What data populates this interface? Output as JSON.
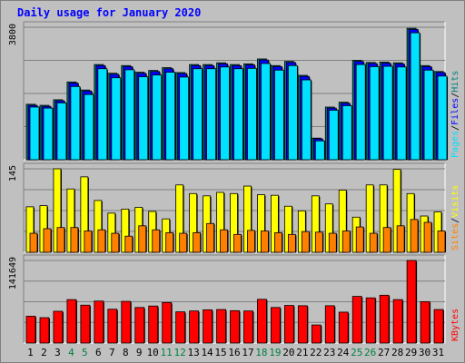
{
  "title": "Daily usage for January 2020",
  "colors": {
    "background": "#c0c0c0",
    "title": "#0000ff",
    "hits": "#008080",
    "files": "#0000ff",
    "pages": "#00e0ff",
    "visits": "#ffff00",
    "sites": "#ff8000",
    "kbytes": "#ff0000",
    "weekend_label": "#008040",
    "weekday_label": "#000000"
  },
  "chart_data": [
    {
      "type": "bar",
      "name": "hits-files-pages",
      "ymax_label": "3800",
      "ylim": [
        0,
        3800
      ],
      "legend": [
        "Pages",
        "/",
        "Files",
        "/",
        "Hits"
      ],
      "categories": [
        "1",
        "2",
        "3",
        "4",
        "5",
        "6",
        "7",
        "8",
        "9",
        "10",
        "11",
        "12",
        "13",
        "14",
        "15",
        "16",
        "17",
        "18",
        "19",
        "20",
        "21",
        "22",
        "23",
        "24",
        "25",
        "26",
        "27",
        "28",
        "29",
        "30",
        "31"
      ],
      "series": [
        {
          "name": "Hits",
          "values": [
            1590,
            1560,
            1720,
            2230,
            2000,
            2730,
            2480,
            2700,
            2510,
            2560,
            2640,
            2500,
            2730,
            2730,
            2780,
            2730,
            2750,
            2890,
            2700,
            2820,
            2420,
            620,
            1510,
            1650,
            2850,
            2790,
            2800,
            2780,
            3770,
            2700,
            2530
          ]
        },
        {
          "name": "Files",
          "values": [
            1560,
            1530,
            1690,
            2200,
            1970,
            2700,
            2450,
            2670,
            2480,
            2530,
            2610,
            2470,
            2700,
            2700,
            2750,
            2700,
            2720,
            2860,
            2670,
            2790,
            2390,
            600,
            1480,
            1620,
            2820,
            2760,
            2770,
            2750,
            3740,
            2670,
            2500
          ]
        },
        {
          "name": "Pages",
          "values": [
            1510,
            1480,
            1630,
            2100,
            1870,
            2610,
            2350,
            2580,
            2380,
            2430,
            2510,
            2370,
            2610,
            2610,
            2660,
            2610,
            2620,
            2760,
            2570,
            2700,
            2290,
            540,
            1420,
            1550,
            2730,
            2670,
            2680,
            2660,
            3640,
            2570,
            2400
          ]
        }
      ]
    },
    {
      "type": "bar",
      "name": "visits-sites",
      "ymax_label": "145",
      "ylim": [
        0,
        145
      ],
      "legend": [
        "Sites",
        "/",
        "Visits"
      ],
      "categories": [
        "1",
        "2",
        "3",
        "4",
        "5",
        "6",
        "7",
        "8",
        "9",
        "10",
        "11",
        "12",
        "13",
        "14",
        "15",
        "16",
        "17",
        "18",
        "19",
        "20",
        "21",
        "22",
        "23",
        "24",
        "25",
        "26",
        "27",
        "28",
        "29",
        "30",
        "31"
      ],
      "series": [
        {
          "name": "Visits",
          "values": [
            79,
            81,
            145,
            110,
            131,
            90,
            68,
            75,
            78,
            71,
            58,
            117,
            102,
            98,
            104,
            102,
            115,
            100,
            99,
            80,
            72,
            98,
            84,
            108,
            61,
            117,
            117,
            144,
            102,
            63,
            70
          ]
        },
        {
          "name": "Sites",
          "values": [
            33,
            41,
            43,
            43,
            37,
            39,
            33,
            28,
            46,
            39,
            34,
            33,
            34,
            50,
            39,
            31,
            38,
            37,
            34,
            31,
            36,
            35,
            33,
            37,
            44,
            33,
            43,
            46,
            57,
            52,
            37
          ]
        }
      ]
    },
    {
      "type": "bar",
      "name": "kbytes",
      "ymax_label": "141649",
      "ylim": [
        0,
        141649
      ],
      "legend": [
        "KBytes"
      ],
      "categories": [
        "1",
        "2",
        "3",
        "4",
        "5",
        "6",
        "7",
        "8",
        "9",
        "10",
        "11",
        "12",
        "13",
        "14",
        "15",
        "16",
        "17",
        "18",
        "19",
        "20",
        "21",
        "22",
        "23",
        "24",
        "25",
        "26",
        "27",
        "28",
        "29",
        "30",
        "31"
      ],
      "series": [
        {
          "name": "KBytes",
          "values": [
            46000,
            43500,
            54500,
            74500,
            65000,
            72000,
            58000,
            71500,
            61000,
            63500,
            69500,
            53500,
            55000,
            57000,
            57500,
            55500,
            55000,
            75000,
            61000,
            64500,
            64000,
            31000,
            64000,
            53000,
            80000,
            77500,
            82000,
            74500,
            141649,
            71000,
            57500
          ]
        }
      ]
    }
  ]
}
